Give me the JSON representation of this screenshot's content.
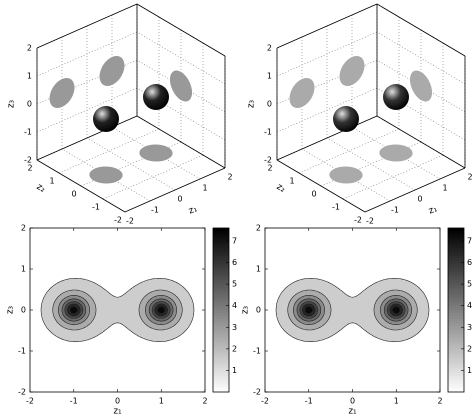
{
  "chart_data": [
    {
      "type": "sphere3d",
      "xlabel": "z₁",
      "ylabel": "z₂",
      "zlabel": "z₃",
      "xlim": [
        -2,
        2
      ],
      "ylim": [
        -2,
        2
      ],
      "zlim": [
        -2,
        2
      ],
      "xticks": [
        -2,
        -1,
        0,
        1,
        2
      ],
      "yticks": [
        -2,
        -1,
        0,
        1,
        2
      ],
      "zticks": [
        -2,
        -1,
        0,
        1,
        2
      ],
      "x": [
        -1,
        1
      ],
      "y": [
        0,
        0
      ],
      "z": [
        0,
        0
      ],
      "sizes": [
        0.5,
        0.5
      ],
      "color": "#222222",
      "shadow_color": "#999999"
    },
    {
      "type": "sphere3d",
      "xlabel": "z₁",
      "ylabel": "z₂",
      "zlabel": "z₃",
      "xlim": [
        -2,
        2
      ],
      "ylim": [
        -2,
        2
      ],
      "zlim": [
        -2,
        2
      ],
      "xticks": [
        -2,
        -1,
        0,
        1,
        2
      ],
      "yticks": [
        -2,
        -1,
        0,
        1,
        2
      ],
      "zticks": [
        -2,
        -1,
        0,
        1,
        2
      ],
      "x": [
        -1,
        1
      ],
      "y": [
        0,
        0
      ],
      "z": [
        0,
        0
      ],
      "sizes": [
        0.5,
        0.5
      ],
      "color": "#333333",
      "shadow_color": "#aaaaaa"
    },
    {
      "type": "contour",
      "xlabel": "z₁",
      "ylabel": "z₃",
      "xlim": [
        -2,
        2
      ],
      "ylim": [
        -2,
        2
      ],
      "xticks": [
        -2,
        -1,
        0,
        1,
        2
      ],
      "yticks": [
        -2,
        -1,
        0,
        1,
        2
      ],
      "peaks": {
        "x": [
          -1,
          1
        ],
        "y": [
          0,
          0
        ],
        "values": [
          7.5,
          7.5
        ]
      },
      "levels": [
        1,
        2,
        3,
        4,
        5,
        6,
        7
      ],
      "clim": [
        0,
        7.6
      ],
      "cticks": [
        1,
        2,
        3,
        4,
        5,
        6,
        7
      ]
    },
    {
      "type": "contour",
      "xlabel": "z₁",
      "ylabel": "z₃",
      "xlim": [
        -2,
        2
      ],
      "ylim": [
        -2,
        2
      ],
      "xticks": [
        -2,
        -1,
        0,
        1,
        2
      ],
      "yticks": [
        -2,
        -1,
        0,
        1,
        2
      ],
      "peaks": {
        "x": [
          -1,
          1
        ],
        "y": [
          0,
          0
        ],
        "values": [
          7.5,
          7.5
        ]
      },
      "levels": [
        1,
        2,
        3,
        4,
        5,
        6,
        7
      ],
      "clim": [
        0,
        7.6
      ],
      "cticks": [
        1,
        2,
        3,
        4,
        5,
        6,
        7
      ]
    }
  ]
}
